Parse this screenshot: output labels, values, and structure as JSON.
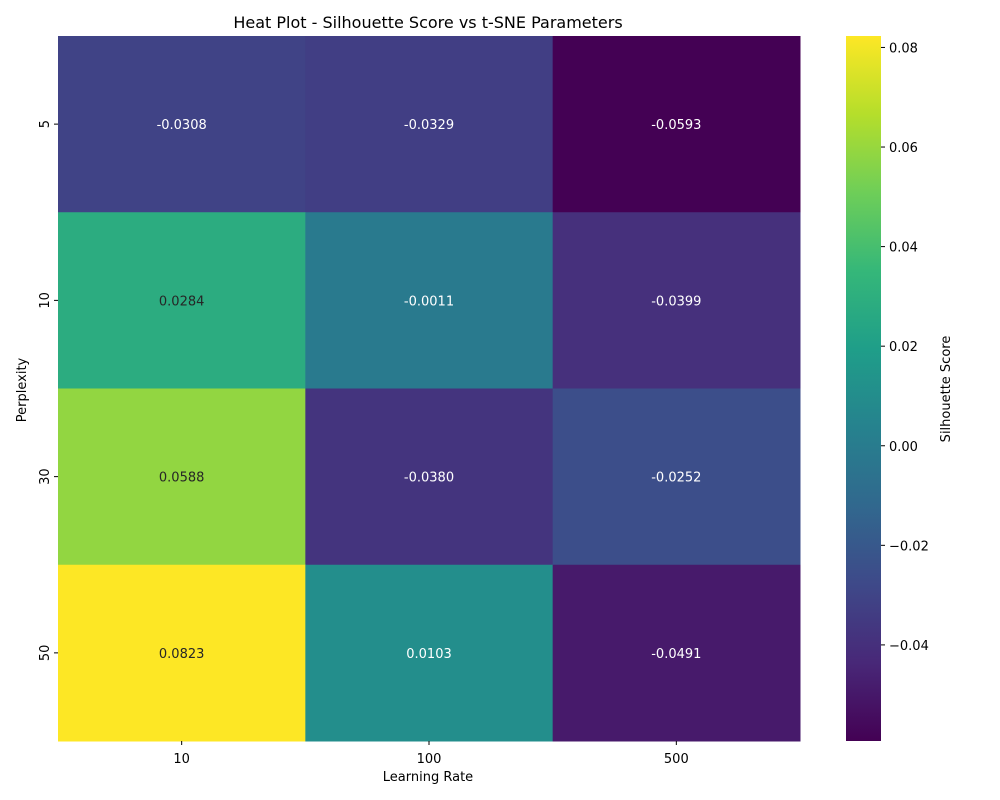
{
  "chart_data": {
    "type": "heatmap",
    "title": "Heat Plot - Silhouette Score vs t-SNE Parameters",
    "xlabel": "Learning Rate",
    "ylabel": "Perplexity",
    "x_categories": [
      "10",
      "100",
      "500"
    ],
    "y_categories": [
      "5",
      "10",
      "30",
      "50"
    ],
    "values": [
      [
        -0.0308,
        -0.0329,
        -0.0593
      ],
      [
        0.0284,
        -0.0011,
        -0.0399
      ],
      [
        0.0588,
        -0.038,
        -0.0252
      ],
      [
        0.0823,
        0.0103,
        -0.0491
      ]
    ],
    "cell_labels": [
      [
        "-0.0308",
        "-0.0329",
        "-0.0593"
      ],
      [
        "0.0284",
        "-0.0011",
        "-0.0399"
      ],
      [
        "0.0588",
        "-0.0380",
        "-0.0252"
      ],
      [
        "0.0823",
        "0.0103",
        "-0.0491"
      ]
    ],
    "colormap": "viridis",
    "color_range": [
      -0.0593,
      0.0823
    ],
    "colorbar": {
      "label": "Silhouette Score",
      "ticks": [
        0.08,
        0.06,
        0.04,
        0.02,
        0.0,
        -0.02,
        -0.04
      ],
      "tick_labels": [
        "0.08",
        "0.06",
        "0.04",
        "0.02",
        "0.00",
        "−0.02",
        "−0.04"
      ]
    },
    "viridis_stops": [
      "#440154",
      "#482878",
      "#3e4989",
      "#31688e",
      "#26828e",
      "#1f9e89",
      "#35b779",
      "#6ece58",
      "#b5de2b",
      "#fde725"
    ]
  }
}
